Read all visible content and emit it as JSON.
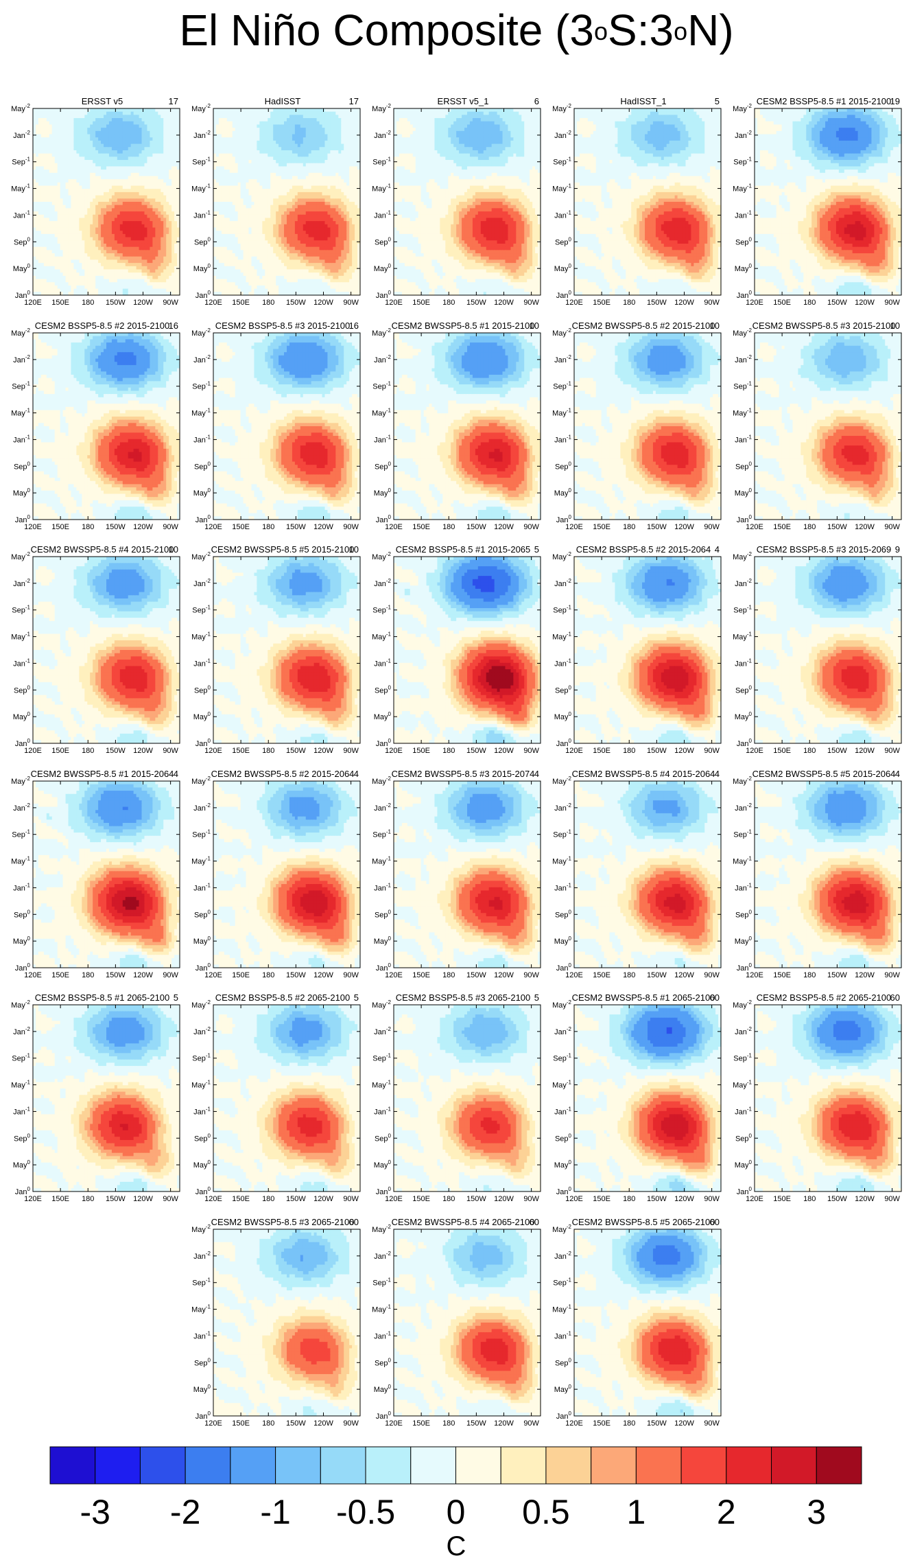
{
  "title": {
    "prefix": "El Niño Composite (3",
    "sup1": "o",
    "mid": "S:3",
    "sup2": "o",
    "suffix": "N)"
  },
  "chart_data": {
    "type": "heatmap",
    "description_units": "SST anomaly composite, Hovmoller (longitude vs time)",
    "xticks": [
      "120E",
      "150E",
      "180",
      "150W",
      "120W",
      "90W"
    ],
    "xtick_lon": [
      120,
      150,
      180,
      210,
      240,
      270
    ],
    "xlim_lon": [
      120,
      280
    ],
    "yticks": [
      {
        "label": "Jan",
        "sup": "0",
        "t": 0
      },
      {
        "label": "May",
        "sup": "0",
        "t": 4
      },
      {
        "label": "Sep",
        "sup": "0",
        "t": 8
      },
      {
        "label": "Jan",
        "sup": "-1",
        "t": 12
      },
      {
        "label": "May",
        "sup": "-1",
        "t": 16
      },
      {
        "label": "Sep",
        "sup": "-1",
        "t": 20
      },
      {
        "label": "Jan",
        "sup": "-2",
        "t": 24
      },
      {
        "label": "May",
        "sup": "-2",
        "t": 28
      }
    ],
    "ylim_months": [
      0,
      28
    ],
    "panels": [
      {
        "title": "ERSST v5",
        "count": "17",
        "warm": 2.0,
        "cold": -1.0,
        "warm_lon": 225,
        "cold_lon": 215,
        "show_y": true,
        "show_x": true
      },
      {
        "title": "HadISST",
        "count": "17",
        "warm": 2.0,
        "cold": -0.8,
        "warm_lon": 228,
        "cold_lon": 215,
        "show_y": false,
        "show_x": true
      },
      {
        "title": "ERSST v5_1",
        "count": "6",
        "warm": 2.1,
        "cold": -1.0,
        "warm_lon": 225,
        "cold_lon": 215,
        "show_y": false,
        "show_x": true
      },
      {
        "title": "HadISST_1",
        "count": "5",
        "warm": 2.1,
        "cold": -0.9,
        "warm_lon": 228,
        "cold_lon": 215,
        "show_y": false,
        "show_x": true
      },
      {
        "title": "CESM2 BSSP5-8.5 #1 2015-2100",
        "count": "19",
        "warm": 2.4,
        "cold": -1.6,
        "warm_lon": 225,
        "cold_lon": 220,
        "show_y": false,
        "show_x": true
      },
      {
        "title": "CESM2 BSSP5-8.5 #2 2015-2100",
        "count": "16",
        "warm": 2.3,
        "cold": -1.6,
        "warm_lon": 225,
        "cold_lon": 220,
        "show_y": true,
        "show_x": true
      },
      {
        "title": "CESM2 BSSP5-8.5 #3 2015-2100",
        "count": "16",
        "warm": 2.1,
        "cold": -1.5,
        "warm_lon": 225,
        "cold_lon": 220,
        "show_y": false,
        "show_x": true
      },
      {
        "title": "CESM2 BWSSP5-8.5 #1 2015-2100",
        "count": "10",
        "warm": 2.3,
        "cold": -1.5,
        "warm_lon": 225,
        "cold_lon": 220,
        "show_y": false,
        "show_x": true
      },
      {
        "title": "CESM2 BWSSP5-8.5 #2 2015-2100",
        "count": "10",
        "warm": 2.1,
        "cold": -1.3,
        "warm_lon": 225,
        "cold_lon": 220,
        "show_y": false,
        "show_x": true
      },
      {
        "title": "CESM2 BWSSP5-8.5 #3 2015-2100",
        "count": "10",
        "warm": 2.0,
        "cold": -1.0,
        "warm_lon": 225,
        "cold_lon": 220,
        "show_y": false,
        "show_x": true
      },
      {
        "title": "CESM2 BWSSP5-8.5 #4 2015-2100",
        "count": "10",
        "warm": 2.1,
        "cold": -1.3,
        "warm_lon": 225,
        "cold_lon": 220,
        "show_y": true,
        "show_x": true
      },
      {
        "title": "CESM2 BWSSP5-8.5 #5 2015-2100",
        "count": "10",
        "warm": 2.2,
        "cold": -1.2,
        "warm_lon": 225,
        "cold_lon": 220,
        "show_y": false,
        "show_x": true
      },
      {
        "title": "CESM2 BSSP5-8.5 #1 2015-2065",
        "count": "5",
        "warm": 3.1,
        "cold": -2.2,
        "warm_lon": 230,
        "cold_lon": 220,
        "show_y": false,
        "show_x": true
      },
      {
        "title": "CESM2 BSSP5-8.5 #2 2015-2064",
        "count": "4",
        "warm": 2.6,
        "cold": -1.5,
        "warm_lon": 225,
        "cold_lon": 220,
        "show_y": false,
        "show_x": true
      },
      {
        "title": "CESM2 BSSP5-8.5 #3 2015-2069",
        "count": "9",
        "warm": 2.1,
        "cold": -1.4,
        "warm_lon": 225,
        "cold_lon": 220,
        "show_y": false,
        "show_x": true
      },
      {
        "title": "CESM2 BWSSP5-8.5 #1 2015-2064",
        "count": "4",
        "warm": 2.8,
        "cold": -1.5,
        "warm_lon": 220,
        "cold_lon": 215,
        "show_y": true,
        "show_x": true
      },
      {
        "title": "CESM2 BWSSP5-8.5 #2 2015-2064",
        "count": "4",
        "warm": 2.6,
        "cold": -1.2,
        "warm_lon": 225,
        "cold_lon": 220,
        "show_y": false,
        "show_x": true
      },
      {
        "title": "CESM2 BWSSP5-8.5 #3 2015-2074",
        "count": "4",
        "warm": 2.3,
        "cold": -1.3,
        "warm_lon": 225,
        "cold_lon": 220,
        "show_y": false,
        "show_x": true
      },
      {
        "title": "CESM2 BWSSP5-8.5 #4 2015-2064",
        "count": "4",
        "warm": 2.4,
        "cold": -1.1,
        "warm_lon": 225,
        "cold_lon": 220,
        "show_y": false,
        "show_x": true
      },
      {
        "title": "CESM2 BWSSP5-8.5 #5 2015-2064",
        "count": "4",
        "warm": 2.5,
        "cold": -1.4,
        "warm_lon": 225,
        "cold_lon": 220,
        "show_y": false,
        "show_x": true
      },
      {
        "title": "CESM2 BSSP5-8.5 #1 2065-2100",
        "count": "5",
        "warm": 2.2,
        "cold": -1.3,
        "warm_lon": 215,
        "cold_lon": 220,
        "show_y": true,
        "show_x": true
      },
      {
        "title": "CESM2 BSSP5-8.5 #2 2065-2100",
        "count": "5",
        "warm": 2.0,
        "cold": -1.2,
        "warm_lon": 220,
        "cold_lon": 220,
        "show_y": false,
        "show_x": true
      },
      {
        "title": "CESM2 BSSP5-8.5 #3 2065-2100",
        "count": "5",
        "warm": 1.9,
        "cold": -1.0,
        "warm_lon": 220,
        "cold_lon": 220,
        "show_y": false,
        "show_x": true
      },
      {
        "title": "CESM2 BWSSP5-8.5 #1 2065-2100",
        "count": "60",
        "warm": 2.6,
        "cold": -2.0,
        "warm_lon": 225,
        "cold_lon": 220,
        "show_y": false,
        "show_x": true
      },
      {
        "title": "CESM2 BSSP5-8.5 #2 2065-2100",
        "count": "60",
        "warm": 2.2,
        "cold": -1.7,
        "warm_lon": 225,
        "cold_lon": 220,
        "show_y": false,
        "show_x": true
      },
      {
        "title": "CESM2 BWSSP5-8.5 #3 2065-2100",
        "count": "60",
        "warm": 1.6,
        "cold": -1.0,
        "warm_lon": 225,
        "cold_lon": 220,
        "show_y": false,
        "show_x": true
      },
      {
        "title": "CESM2 BWSSP5-8.5 #4 2065-2100",
        "count": "60",
        "warm": 2.1,
        "cold": -0.9,
        "warm_lon": 225,
        "cold_lon": 220,
        "show_y": false,
        "show_x": true
      },
      {
        "title": "CESM2 BWSSP5-8.5 #5 2065-2100",
        "count": "60",
        "warm": 2.2,
        "cold": -1.7,
        "warm_lon": 225,
        "cold_lon": 220,
        "show_y": false,
        "show_x": true
      }
    ],
    "colorbar": {
      "levels": [
        -3.5,
        -3,
        -2.5,
        -2,
        -1.5,
        -1,
        -0.75,
        -0.5,
        -0.25,
        0,
        0.25,
        0.5,
        0.75,
        1,
        1.5,
        2,
        2.5,
        3,
        3.5
      ],
      "colors": [
        "#1e0fd2",
        "#1e1ef0",
        "#2d50eb",
        "#3c7ef0",
        "#55a0f5",
        "#78c3f8",
        "#96daf8",
        "#b9f0fa",
        "#e6fafd",
        "#fffbe5",
        "#fff0be",
        "#fcd296",
        "#fca878",
        "#fa7350",
        "#f5463c",
        "#e6282d",
        "#d21928",
        "#a00a1e"
      ],
      "tick_labels": [
        "-3",
        "-2",
        "-1",
        "-0.5",
        "0",
        "0.5",
        "1",
        "2",
        "3"
      ],
      "tick_values": [
        -3,
        -2,
        -1,
        -0.5,
        0,
        0.5,
        1,
        2,
        3
      ],
      "unit": "C"
    }
  }
}
